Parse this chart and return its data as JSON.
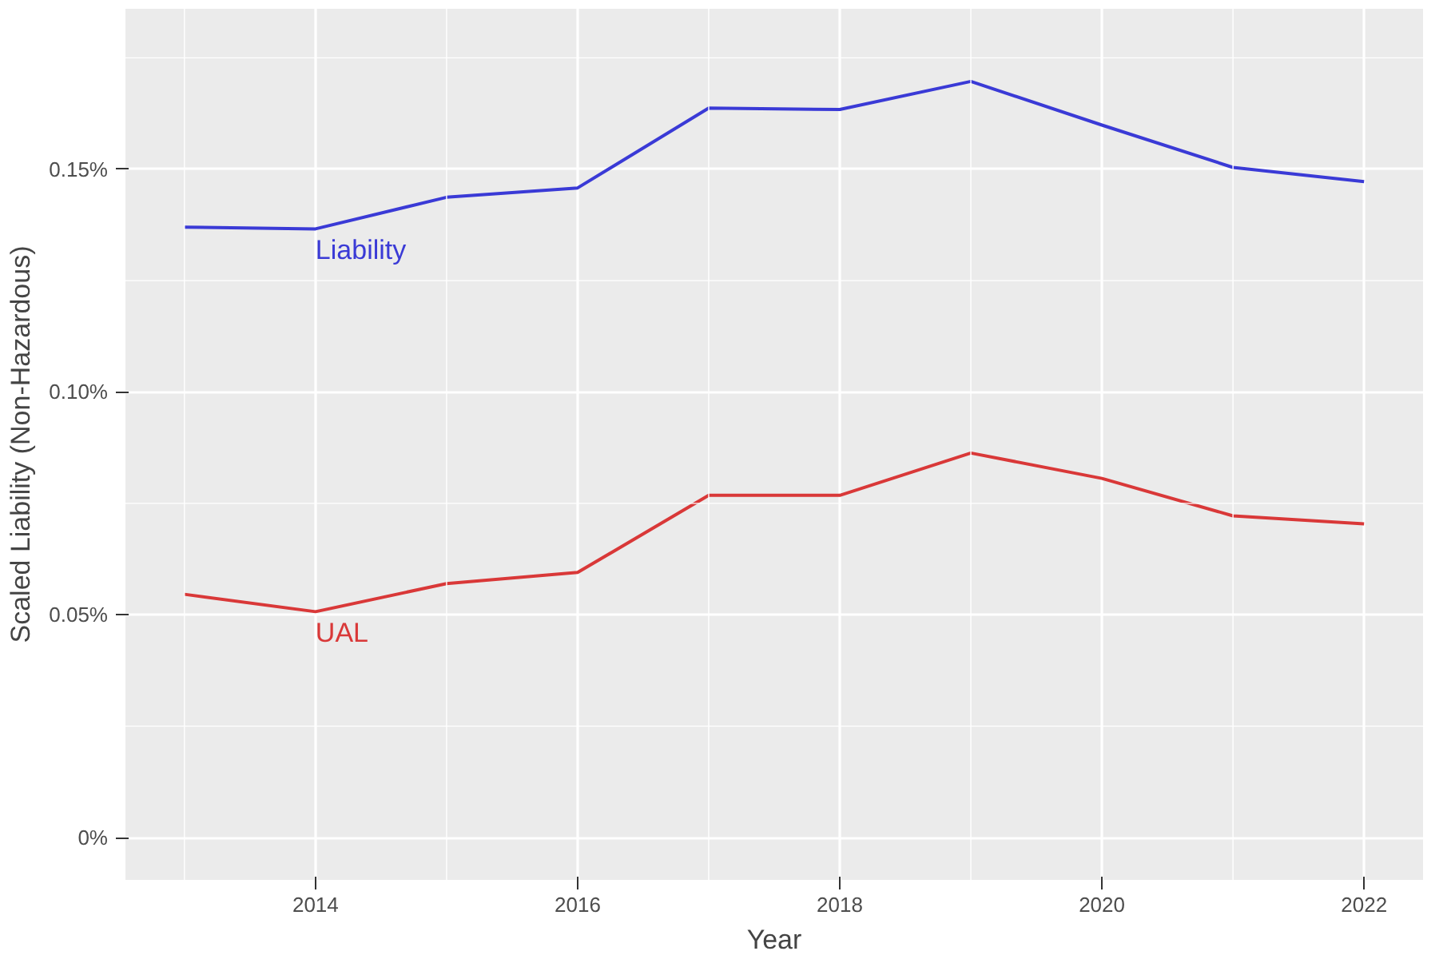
{
  "chart_data": {
    "type": "line",
    "xlabel": "Year",
    "ylabel": "Scaled Liability (Non-Hazardous)",
    "x": [
      2013,
      2014,
      2015,
      2016,
      2017,
      2018,
      2019,
      2020,
      2021,
      2022
    ],
    "series": [
      {
        "name": "Liability",
        "color": "#3a3ad6",
        "values": [
          0.137,
          0.1366,
          0.1437,
          0.1458,
          0.1637,
          0.1634,
          0.1697,
          0.1599,
          0.1504,
          0.1472
        ]
      },
      {
        "name": "UAL",
        "color": "#d93838",
        "values": [
          0.0546,
          0.0507,
          0.057,
          0.0595,
          0.0768,
          0.0768,
          0.0863,
          0.0806,
          0.0722,
          0.0704
        ]
      }
    ],
    "xlim": [
      2012.55,
      2022.45
    ],
    "ylim": [
      -0.0095,
      0.186
    ],
    "xticks": [
      2014,
      2016,
      2018,
      2020,
      2022
    ],
    "yticks": [
      {
        "value": 0,
        "label": "0%"
      },
      {
        "value": 0.05,
        "label": "0.05%"
      },
      {
        "value": 0.1,
        "label": "0.10%"
      },
      {
        "value": 0.15,
        "label": "0.15%"
      }
    ],
    "grid": true,
    "marker": "none",
    "line_style": "solid"
  }
}
